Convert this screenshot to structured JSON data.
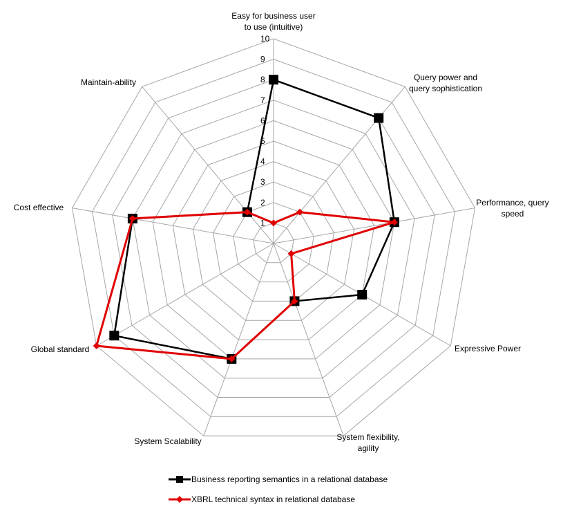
{
  "chart_data": {
    "type": "radar",
    "title": "",
    "axes": [
      "Easy for business user to use (intuitive)",
      "Query power and query sophistication",
      "Performance, query speed",
      "Expressive Power",
      "System flexibility, agility",
      "System Scalability",
      "Global standard",
      "Cost effective",
      "Maintain-ability"
    ],
    "axis_label_lines": [
      [
        "Easy for business user",
        "to use (intuitive)"
      ],
      [
        "Query power and",
        "query sophistication"
      ],
      [
        "Performance, query",
        "speed"
      ],
      [
        "Expressive Power"
      ],
      [
        "System flexibility,",
        "agility"
      ],
      [
        "System Scalability"
      ],
      [
        "Global standard"
      ],
      [
        "Cost effective"
      ],
      [
        "Maintain-ability"
      ]
    ],
    "rlim": [
      0,
      10
    ],
    "ticks": [
      1,
      2,
      3,
      4,
      5,
      6,
      7,
      8,
      9,
      10
    ],
    "grid": true,
    "legend_position": "bottom",
    "series": [
      {
        "name": "Business reporting semantics in a relational database",
        "color": "#000000",
        "marker": "square",
        "values": [
          8,
          8,
          6,
          5,
          3,
          6,
          9,
          7,
          2
        ]
      },
      {
        "name": "XBRL technical syntax in relational database",
        "color": "#e00000",
        "marker": "diamond",
        "values": [
          1,
          2,
          6,
          1,
          3,
          6,
          10,
          7,
          2
        ]
      }
    ]
  }
}
